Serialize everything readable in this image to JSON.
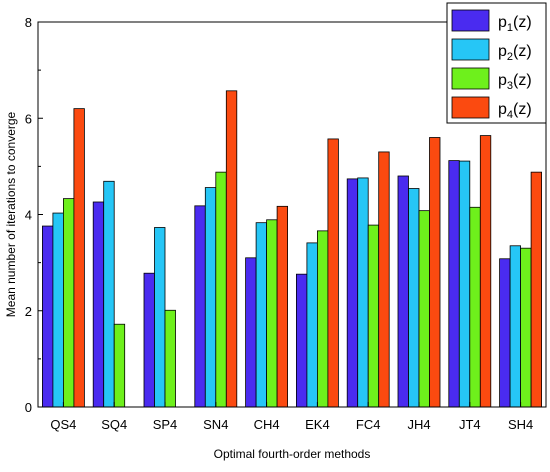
{
  "chart_data": {
    "type": "bar",
    "title": "",
    "xlabel": "Optimal fourth-order methods",
    "ylabel": "Mean number of iterations to converge",
    "ylim": [
      0,
      8
    ],
    "yticks": [
      0,
      2,
      4,
      6,
      8
    ],
    "grid": false,
    "legend_position": "top-right",
    "categories": [
      "QS4",
      "SQ4",
      "SP4",
      "SN4",
      "CH4",
      "EK4",
      "FC4",
      "JH4",
      "JT4",
      "SH4"
    ],
    "series": [
      {
        "name": "p1(z)",
        "label_main": "p",
        "label_sub": "1",
        "label_tail": "(z)",
        "color": "#4a2bf0",
        "values": [
          3.76,
          4.26,
          2.78,
          4.18,
          3.1,
          2.76,
          4.74,
          4.8,
          5.12,
          3.08
        ]
      },
      {
        "name": "p2(z)",
        "label_main": "p",
        "label_sub": "2",
        "label_tail": "(z)",
        "color": "#26c6f6",
        "values": [
          4.03,
          4.69,
          3.73,
          4.56,
          3.83,
          3.41,
          4.76,
          4.54,
          5.11,
          3.35
        ]
      },
      {
        "name": "p3(z)",
        "label_main": "p",
        "label_sub": "3",
        "label_tail": "(z)",
        "color": "#6ef01c",
        "values": [
          4.33,
          1.72,
          2.01,
          4.88,
          3.89,
          3.66,
          3.78,
          4.08,
          4.15,
          3.3
        ]
      },
      {
        "name": "p4(z)",
        "label_main": "p",
        "label_sub": "4",
        "label_tail": "(z)",
        "color": "#fb4a10",
        "values": [
          6.2,
          null,
          null,
          6.57,
          4.17,
          5.57,
          5.3,
          5.6,
          5.64,
          4.88
        ]
      }
    ]
  }
}
